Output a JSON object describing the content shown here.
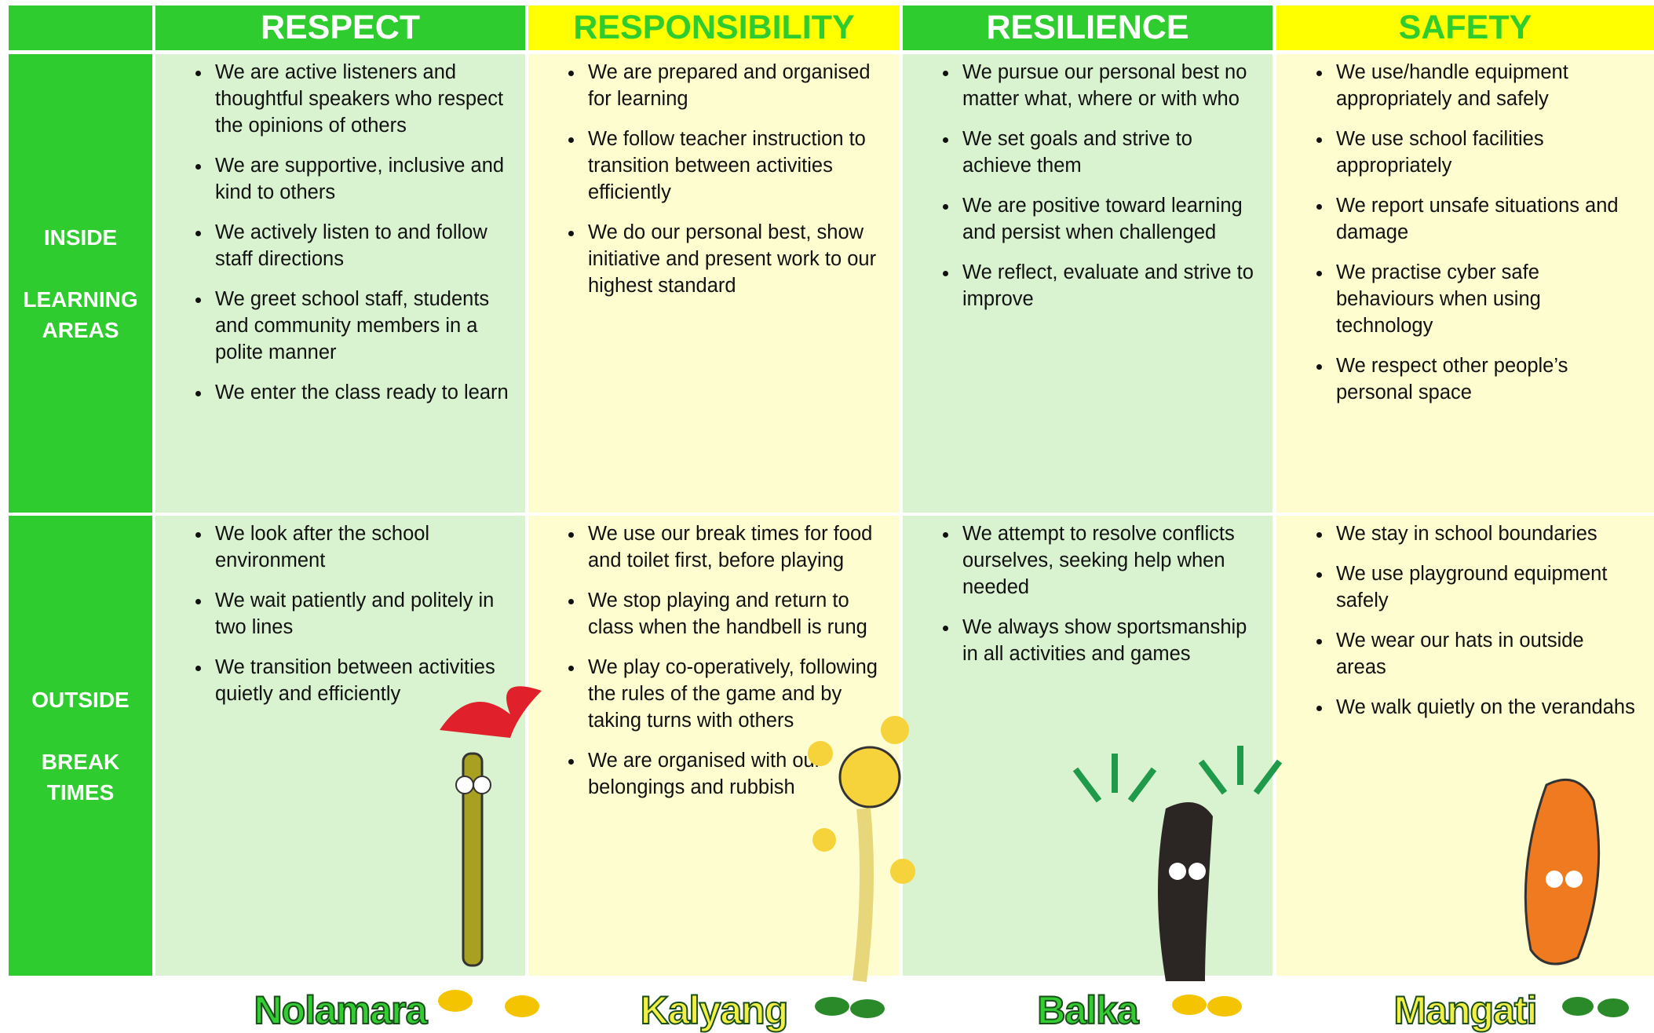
{
  "columns": [
    {
      "title": "RESPECT",
      "mascot": "Nolamara",
      "rows": [
        [
          "We are active listeners and thoughtful speakers who respect the opinions of others",
          "We are supportive, inclusive and kind to others",
          "We actively listen to and follow staff directions",
          "We greet school staff, students and community members in a polite manner",
          "We enter the class ready to learn"
        ],
        [
          "We look after the school environment",
          "We wait patiently and politely in two lines",
          "We transition between activities quietly and efficiently"
        ]
      ]
    },
    {
      "title": "RESPONSIBILITY",
      "mascot": "Kalyang",
      "rows": [
        [
          "We are prepared and organised for learning",
          "We follow teacher instruction to transition between activities efficiently",
          "We do our personal best, show initiative and present work to our highest standard"
        ],
        [
          "We use our break times for food and toilet first, before playing",
          "We stop playing and return to class when the handbell is rung",
          "We play co-operatively, following the rules of the game and by taking turns with others",
          "We are organised with our belongings and rubbish"
        ]
      ]
    },
    {
      "title": "RESILIENCE",
      "mascot": "Balka",
      "rows": [
        [
          "We pursue our personal best no matter what, where or with who",
          "We set goals and strive to achieve them",
          "We are positive toward learning and persist when challenged",
          "We reflect, evaluate and strive to improve"
        ],
        [
          "We attempt to resolve conflicts ourselves, seeking help when needed",
          "We always show sportsmanship in all activities and games"
        ]
      ]
    },
    {
      "title": "SAFETY",
      "mascot": "Mangati",
      "rows": [
        [
          "We use/handle equipment appropriately and safely",
          "We use school facilities appropriately",
          "We report unsafe situations and damage",
          "We practise cyber safe behaviours when using technology",
          "We respect other people’s personal space"
        ],
        [
          "We stay in school boundaries",
          "We use playground equipment safely",
          "We wear our hats in outside areas",
          "We walk quietly on the verandahs"
        ]
      ]
    }
  ],
  "row_labels": [
    [
      "INSIDE",
      "LEARNING AREAS"
    ],
    [
      "OUTSIDE",
      "BREAK TIMES"
    ]
  ]
}
